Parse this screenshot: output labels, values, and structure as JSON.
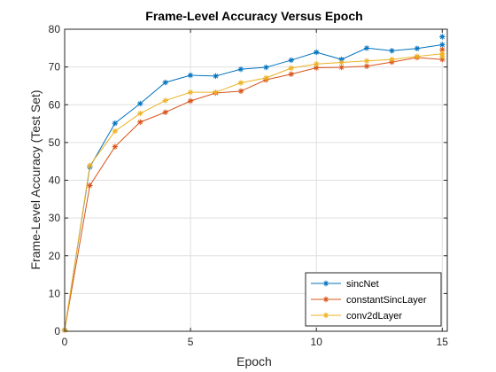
{
  "chart_data": {
    "type": "line",
    "title": "Frame-Level Accuracy Versus Epoch",
    "xlabel": "Epoch",
    "ylabel": "Frame-Level Accuracy (Test Set)",
    "xlim": [
      0,
      15.2
    ],
    "ylim": [
      0,
      80
    ],
    "xticks": [
      0,
      5,
      10,
      15
    ],
    "yticks": [
      0,
      10,
      20,
      30,
      40,
      50,
      60,
      70,
      80
    ],
    "grid": true,
    "legend_position": "bottom-right",
    "x": [
      0,
      1,
      2,
      3,
      4,
      5,
      6,
      7,
      8,
      9,
      10,
      11,
      12,
      13,
      14,
      15
    ],
    "series": [
      {
        "name": "sincNet",
        "color": "#0072BD",
        "values": [
          0.3,
          43.5,
          55.1,
          60.3,
          65.9,
          67.8,
          67.6,
          69.4,
          69.9,
          71.8,
          73.9,
          72.0,
          75.0,
          74.3,
          74.9,
          75.9
        ],
        "extra_points": [
          [
            15,
            78.0
          ]
        ]
      },
      {
        "name": "constantSincLayer",
        "color": "#D95319",
        "values": [
          0.3,
          38.6,
          48.9,
          55.4,
          58.0,
          61.0,
          63.1,
          63.6,
          66.6,
          68.1,
          69.8,
          69.9,
          70.2,
          71.3,
          72.5,
          72.0
        ],
        "extra_points": [
          [
            15,
            74.6
          ]
        ]
      },
      {
        "name": "conv2dLayer",
        "color": "#EDB120",
        "values": [
          0.3,
          43.9,
          53.0,
          57.7,
          61.1,
          63.3,
          63.3,
          65.8,
          67.1,
          69.7,
          70.8,
          71.2,
          71.6,
          72.0,
          72.8,
          73.5
        ],
        "extra_points": [
          [
            15,
            72.8
          ]
        ]
      }
    ]
  }
}
